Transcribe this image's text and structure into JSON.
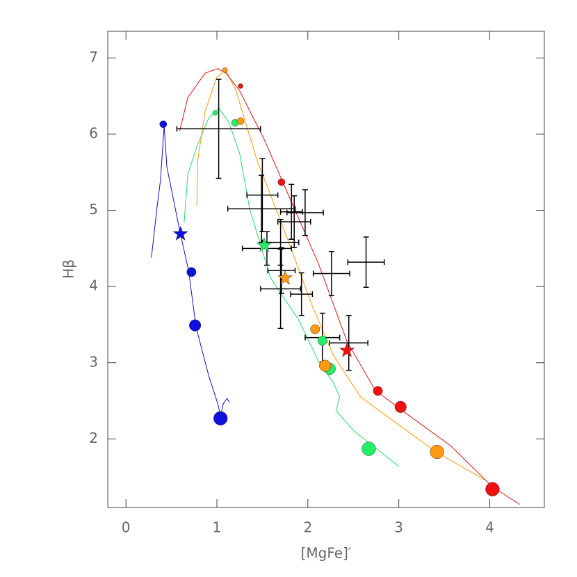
{
  "chart_data": {
    "type": "scatter",
    "xlabel": "[MgFe]′",
    "ylabel": "Hβ",
    "xlim": [
      -0.2,
      4.6
    ],
    "ylim": [
      1.1,
      7.35
    ],
    "xticks": [
      0,
      1,
      2,
      3,
      4
    ],
    "yticks": [
      2,
      3,
      4,
      5,
      6,
      7
    ],
    "tracks": [
      {
        "color": "#1010cc",
        "x": [
          0.28,
          0.34,
          0.38,
          0.42,
          0.45,
          0.59,
          0.69,
          0.77,
          0.91,
          1.01,
          1.04,
          1.07,
          1.11,
          1.14
        ],
        "y": [
          4.38,
          5.02,
          5.4,
          6.11,
          5.57,
          4.74,
          4.2,
          3.47,
          2.83,
          2.46,
          2.3,
          2.46,
          2.53,
          2.48
        ]
      },
      {
        "color": "#22dd66",
        "x": [
          0.64,
          0.68,
          0.78,
          0.91,
          1.02,
          1.13,
          1.25,
          1.36,
          1.59,
          1.9,
          2.12,
          2.28,
          2.35,
          2.31,
          2.51,
          2.81,
          3.0
        ],
        "y": [
          4.84,
          5.47,
          5.84,
          6.21,
          6.34,
          6.16,
          5.75,
          5.02,
          4.11,
          3.56,
          3.01,
          2.74,
          2.55,
          2.37,
          2.1,
          1.82,
          1.64
        ]
      },
      {
        "color": "#ff9900",
        "x": [
          0.78,
          0.79,
          0.87,
          1.0,
          1.1,
          1.21,
          1.44,
          1.74,
          2.05,
          2.28,
          2.58,
          2.89,
          3.42,
          3.95
        ],
        "y": [
          5.06,
          5.66,
          6.3,
          6.75,
          6.84,
          6.57,
          5.66,
          4.74,
          3.74,
          3.1,
          2.55,
          2.28,
          1.82,
          1.46
        ]
      },
      {
        "color": "#ee1111",
        "x": [
          0.59,
          0.68,
          0.87,
          1.01,
          1.1,
          1.25,
          1.52,
          1.82,
          2.12,
          2.43,
          2.74,
          3.04,
          3.57,
          4.03,
          4.33
        ],
        "y": [
          6.04,
          6.48,
          6.8,
          6.86,
          6.8,
          6.57,
          5.93,
          5.11,
          4.29,
          3.28,
          2.64,
          2.37,
          1.91,
          1.37,
          1.14
        ]
      }
    ],
    "models": [
      {
        "color": "#1010dd",
        "x": [
          0.41,
          0.72,
          0.76,
          1.04
        ],
        "y": [
          6.13,
          4.19,
          3.49,
          2.27
        ]
      },
      {
        "color": "#22ee66",
        "x": [
          0.98,
          1.2,
          2.16,
          2.24,
          2.67
        ],
        "y": [
          6.28,
          6.15,
          3.29,
          2.92,
          1.87
        ]
      },
      {
        "color": "#ff9911",
        "x": [
          1.09,
          1.26,
          2.08,
          2.19,
          3.42
        ],
        "y": [
          6.84,
          6.17,
          3.44,
          2.96,
          1.83
        ]
      },
      {
        "color": "#ee1111",
        "x": [
          1.26,
          1.71,
          2.77,
          3.02,
          4.03
        ],
        "y": [
          6.63,
          5.37,
          2.63,
          2.42,
          1.34
        ]
      }
    ],
    "stars": [
      {
        "color": "#1010dd",
        "x": 0.6,
        "y": 4.69
      },
      {
        "color": "#22ee66",
        "x": 1.52,
        "y": 4.54
      },
      {
        "color": "#ff9911",
        "x": 1.75,
        "y": 4.11
      },
      {
        "color": "#ee1111",
        "x": 2.43,
        "y": 3.16
      }
    ],
    "observations": {
      "color": "#000000",
      "x": [
        1.02,
        1.49,
        1.5,
        1.82,
        1.97,
        1.85,
        1.7,
        1.55,
        1.71,
        2.26,
        2.64,
        1.7,
        1.93,
        2.16,
        2.45
      ],
      "y": [
        6.07,
        5.02,
        5.2,
        4.98,
        4.97,
        4.85,
        4.58,
        4.5,
        4.21,
        4.17,
        4.32,
        3.97,
        3.9,
        3.33,
        3.26
      ],
      "xerr": [
        0.46,
        0.37,
        0.17,
        0.12,
        0.2,
        0.18,
        0.2,
        0.27,
        0.15,
        0.2,
        0.2,
        0.22,
        0.12,
        0.19,
        0.21
      ],
      "yerr": [
        0.65,
        0.44,
        0.48,
        0.36,
        0.3,
        0.34,
        0.3,
        0.22,
        0.3,
        0.29,
        0.33,
        0.52,
        0.28,
        0.32,
        0.36
      ]
    }
  }
}
